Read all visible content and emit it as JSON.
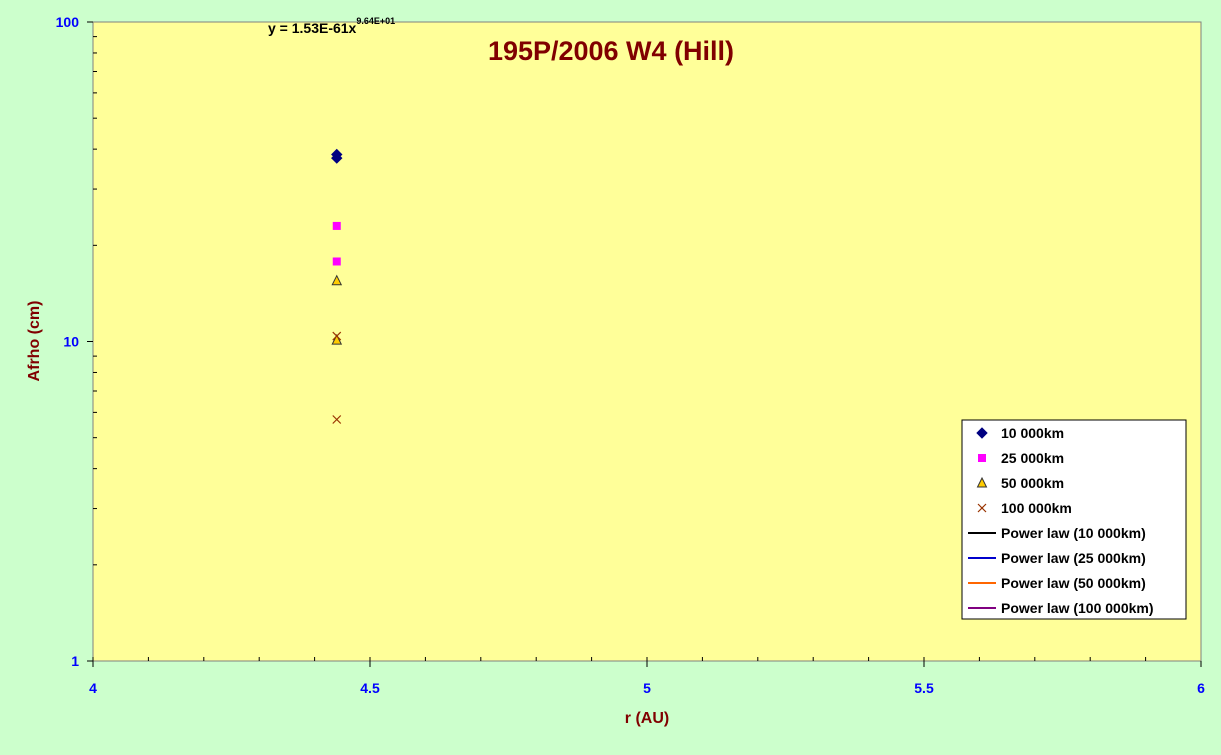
{
  "chart_data": {
    "type": "scatter",
    "title": "195P/2006 W4 (Hill)",
    "xlabel": "r (AU)",
    "ylabel": "Afrho (cm)",
    "xlim": [
      4,
      6
    ],
    "ylim": [
      1,
      100
    ],
    "yscale": "log",
    "x_ticks": [
      "4",
      "4.5",
      "5",
      "5.5",
      "6"
    ],
    "y_ticks": [
      "1",
      "10",
      "100"
    ],
    "equation": {
      "base": "y = 1.53E-61x",
      "exponent": "9.64E+01"
    },
    "grid": false,
    "legend_position": "right",
    "series": [
      {
        "name": "10 000km",
        "marker": "diamond",
        "color": "#000080",
        "x": [
          4.44,
          4.44
        ],
        "y": [
          38.5,
          37.5
        ]
      },
      {
        "name": "25 000km",
        "marker": "square",
        "color": "#ff00ff",
        "x": [
          4.44,
          4.44
        ],
        "y": [
          23.0,
          17.8
        ]
      },
      {
        "name": "50 000km",
        "marker": "triangle",
        "color": "#ffcc00",
        "x": [
          4.44,
          4.44
        ],
        "y": [
          15.5,
          10.1
        ]
      },
      {
        "name": "100 000km",
        "marker": "x",
        "color": "#993300",
        "x": [
          4.44,
          4.44
        ],
        "y": [
          10.4,
          5.7
        ]
      },
      {
        "name": "Power law (10 000km)",
        "marker": "line",
        "color": "#000000",
        "x": [],
        "y": []
      },
      {
        "name": "Power law (25 000km)",
        "marker": "line",
        "color": "#0000cc",
        "x": [],
        "y": []
      },
      {
        "name": "Power law (50 000km)",
        "marker": "line",
        "color": "#ff6600",
        "x": [],
        "y": []
      },
      {
        "name": "Power law (100 000km)",
        "marker": "line",
        "color": "#800080",
        "x": [],
        "y": []
      }
    ],
    "colors": {
      "background": "#ccffcc",
      "plot_area": "#ffff99",
      "title": "#800000",
      "axis_label": "#800000",
      "tick_label": "#0000ff"
    }
  }
}
